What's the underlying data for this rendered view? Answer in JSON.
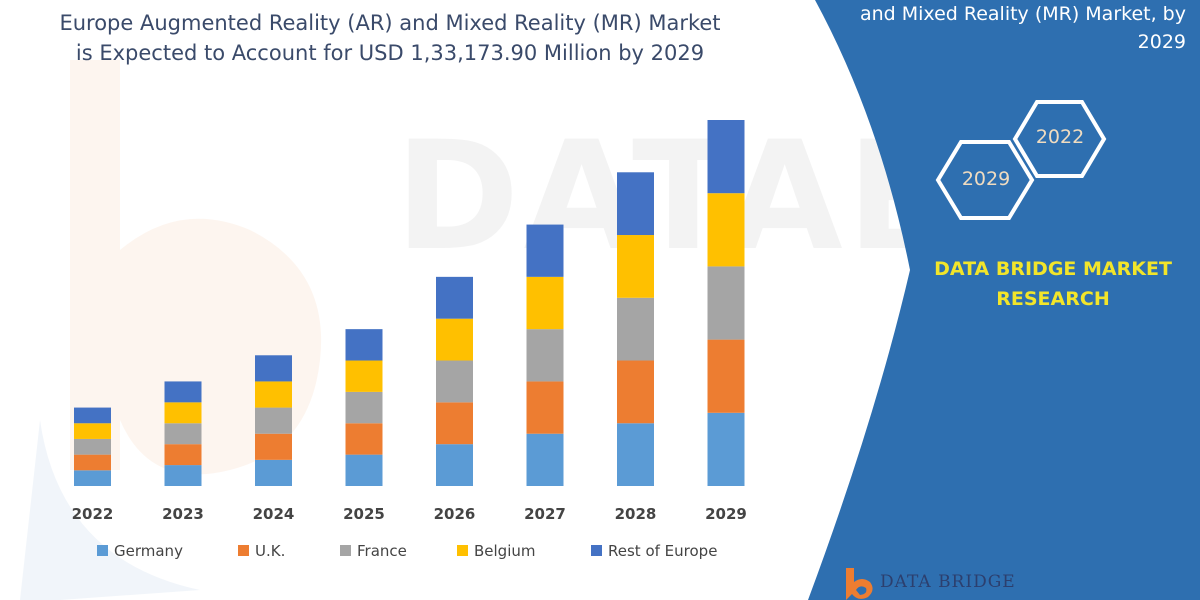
{
  "header": {
    "title_line1": "Europe Augmented Reality (AR) and Mixed Reality (MR) Market",
    "title_line2": "is Expected to Account for USD 1,33,173.90 Million by 2029"
  },
  "side_panel": {
    "title_line1": "and Mixed Reality (MR) Market, by",
    "title_line2": "2029",
    "hex_top": "2022",
    "hex_bottom": "2029",
    "brand_line1": "DATA BRIDGE MARKET",
    "brand_line2": "RESEARCH",
    "panel_color": "#2e6fb0",
    "brand_color": "#f2e52a"
  },
  "footer": {
    "logo_text": "DATA BRIDGE"
  },
  "chart_data": {
    "type": "bar",
    "stacked": true,
    "categories": [
      "2022",
      "2023",
      "2024",
      "2025",
      "2026",
      "2027",
      "2028",
      "2029"
    ],
    "series": [
      {
        "name": "Germany",
        "color": "#5b9bd5",
        "values": [
          15,
          20,
          25,
          30,
          40,
          50,
          60,
          70
        ]
      },
      {
        "name": "U.K.",
        "color": "#ed7d31",
        "values": [
          15,
          20,
          25,
          30,
          40,
          50,
          60,
          70
        ]
      },
      {
        "name": "France",
        "color": "#a5a5a5",
        "values": [
          15,
          20,
          25,
          30,
          40,
          50,
          60,
          70
        ]
      },
      {
        "name": "Belgium",
        "color": "#ffc000",
        "values": [
          15,
          20,
          25,
          30,
          40,
          50,
          60,
          70
        ]
      },
      {
        "name": "Rest of Europe",
        "color": "#4472c4",
        "values": [
          15,
          20,
          25,
          30,
          40,
          50,
          60,
          70
        ]
      }
    ],
    "ylim": [
      0,
      350
    ],
    "grid": false,
    "legend": "bottom"
  }
}
